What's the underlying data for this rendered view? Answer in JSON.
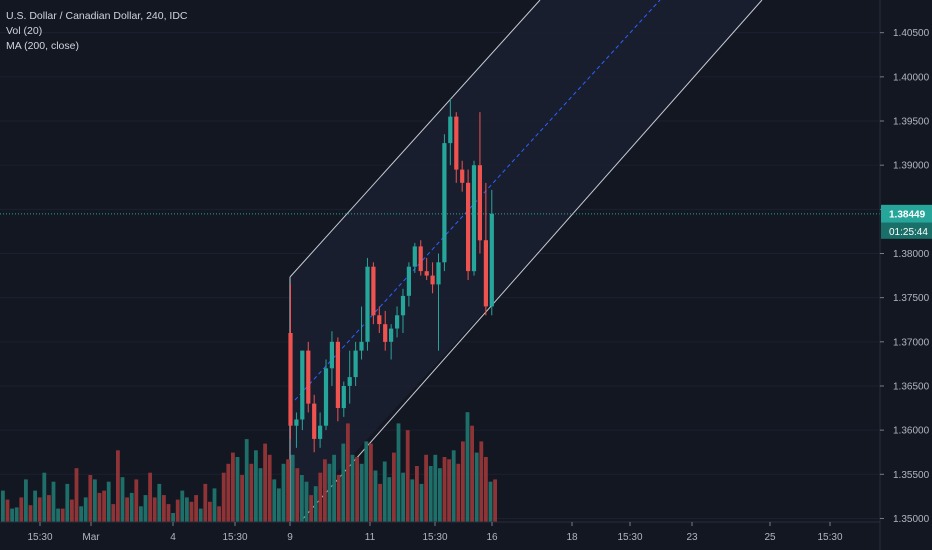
{
  "header": {
    "symbol": "U.S. Dollar / Canadian Dollar, 240, IDC",
    "indicator_vol": "Vol (20)",
    "indicator_ma": "MA (200, close)"
  },
  "colors": {
    "background": "#131722",
    "up": "#26a69a",
    "down": "#ef5350",
    "vol_up": "#1e6f69",
    "vol_down": "#8e3437",
    "channel_line": "#c8ccd6",
    "channel_fill": "#1b1f30",
    "midline": "#2962ff",
    "price_line": "#26a69a",
    "axis_text": "#b2b5be",
    "label_bg": "#26a69a",
    "label_text": "#ffffff"
  },
  "price_label": "1.38449",
  "countdown_label": "01:25:44",
  "chart_data": {
    "type": "candlestick",
    "y_axis_ticks": [
      "1.40500",
      "1.40000",
      "1.39500",
      "1.39000",
      "1.38500",
      "1.38000",
      "1.37500",
      "1.37000",
      "1.36500",
      "1.36000",
      "1.35500",
      "1.35000"
    ],
    "ylim": [
      1.3496,
      1.4087
    ],
    "x_axis_ticks": [
      "15:30",
      "Mar",
      "4",
      "15:30",
      "9",
      "11",
      "15:30",
      "16",
      "18",
      "15:30",
      "23",
      "25",
      "15:30"
    ],
    "last_price": 1.38449,
    "candles": [
      {
        "o": 1.371,
        "h": 1.3765,
        "l": 1.359,
        "c": 1.3605
      },
      {
        "o": 1.3605,
        "h": 1.362,
        "l": 1.358,
        "c": 1.3612
      },
      {
        "o": 1.3612,
        "h": 1.369,
        "c": 1.369,
        "l": 1.36
      },
      {
        "o": 1.369,
        "h": 1.37,
        "l": 1.362,
        "c": 1.363
      },
      {
        "o": 1.363,
        "h": 1.364,
        "l": 1.3575,
        "c": 1.359
      },
      {
        "o": 1.359,
        "h": 1.362,
        "l": 1.358,
        "c": 1.3605
      },
      {
        "o": 1.3605,
        "h": 1.368,
        "l": 1.36,
        "c": 1.367
      },
      {
        "o": 1.367,
        "h": 1.3712,
        "l": 1.365,
        "c": 1.37
      },
      {
        "o": 1.37,
        "h": 1.3705,
        "l": 1.361,
        "c": 1.3625
      },
      {
        "o": 1.3625,
        "h": 1.3655,
        "l": 1.3615,
        "c": 1.365
      },
      {
        "o": 1.365,
        "h": 1.369,
        "l": 1.363,
        "c": 1.366
      },
      {
        "o": 1.366,
        "h": 1.37,
        "l": 1.365,
        "c": 1.369
      },
      {
        "o": 1.369,
        "h": 1.374,
        "l": 1.368,
        "c": 1.37
      },
      {
        "o": 1.37,
        "h": 1.3795,
        "l": 1.369,
        "c": 1.3785
      },
      {
        "o": 1.3785,
        "h": 1.379,
        "l": 1.372,
        "c": 1.373
      },
      {
        "o": 1.373,
        "h": 1.374,
        "l": 1.371,
        "c": 1.372
      },
      {
        "o": 1.372,
        "h": 1.3735,
        "l": 1.369,
        "c": 1.37
      },
      {
        "o": 1.37,
        "h": 1.372,
        "l": 1.368,
        "c": 1.3715
      },
      {
        "o": 1.3715,
        "h": 1.374,
        "l": 1.3705,
        "c": 1.373
      },
      {
        "o": 1.373,
        "h": 1.376,
        "l": 1.371,
        "c": 1.3752
      },
      {
        "o": 1.3752,
        "h": 1.379,
        "l": 1.374,
        "c": 1.3785
      },
      {
        "o": 1.3785,
        "h": 1.3812,
        "l": 1.3778,
        "c": 1.3808
      },
      {
        "o": 1.3808,
        "h": 1.3815,
        "l": 1.3775,
        "c": 1.378
      },
      {
        "o": 1.378,
        "h": 1.3795,
        "l": 1.377,
        "c": 1.3775
      },
      {
        "o": 1.3775,
        "h": 1.379,
        "l": 1.3755,
        "c": 1.3765
      },
      {
        "o": 1.3765,
        "h": 1.38,
        "l": 1.369,
        "c": 1.379
      },
      {
        "o": 1.379,
        "h": 1.3935,
        "l": 1.378,
        "c": 1.3925
      },
      {
        "o": 1.3925,
        "h": 1.3975,
        "l": 1.39,
        "c": 1.3955
      },
      {
        "o": 1.3955,
        "h": 1.396,
        "l": 1.388,
        "c": 1.3895
      },
      {
        "o": 1.3895,
        "h": 1.3905,
        "l": 1.387,
        "c": 1.388
      },
      {
        "o": 1.388,
        "h": 1.3895,
        "l": 1.377,
        "c": 1.378
      },
      {
        "o": 1.378,
        "h": 1.3905,
        "l": 1.3775,
        "c": 1.39
      },
      {
        "o": 1.39,
        "h": 1.396,
        "l": 1.38,
        "c": 1.3815
      },
      {
        "o": 1.3815,
        "h": 1.388,
        "l": 1.373,
        "c": 1.374
      },
      {
        "o": 1.374,
        "h": 1.3872,
        "l": 1.373,
        "c": 1.3845
      }
    ],
    "volume": {
      "values": [
        28,
        20,
        12,
        13,
        22,
        38,
        15,
        28,
        22,
        44,
        24,
        36,
        12,
        12,
        34,
        20,
        48,
        14,
        22,
        42,
        38,
        26,
        28,
        36,
        16,
        64,
        40,
        22,
        26,
        38,
        14,
        24,
        44,
        22,
        34,
        24,
        16,
        8,
        20,
        28,
        22,
        18,
        24,
        12,
        34,
        18,
        30,
        14,
        44,
        52,
        62,
        58,
        42,
        74,
        52,
        64,
        48,
        70,
        60,
        38,
        30,
        52,
        56,
        60,
        48,
        42,
        36,
        24,
        32,
        44,
        56,
        52,
        60,
        42,
        70,
        88,
        60,
        58,
        52,
        72,
        70,
        46,
        34,
        54,
        40,
        62,
        88,
        44,
        82,
        38,
        50,
        34,
        60,
        50,
        60,
        48,
        58,
        56,
        64,
        52,
        72,
        98,
        86,
        62,
        72,
        58,
        36,
        38
      ],
      "up": [
        1,
        0,
        1,
        1,
        0,
        1,
        0,
        1,
        0,
        1,
        0,
        1,
        1,
        0,
        1,
        0,
        0,
        1,
        1,
        0,
        1,
        0,
        0,
        1,
        0,
        0,
        1,
        0,
        1,
        0,
        1,
        1,
        0,
        0,
        1,
        0,
        0,
        1,
        0,
        1,
        1,
        0,
        0,
        1,
        0,
        0,
        1,
        0,
        0,
        0,
        0,
        1,
        0,
        1,
        0,
        1,
        1,
        0,
        0,
        1,
        1,
        1,
        0,
        1,
        0,
        1,
        1,
        0,
        1,
        0,
        0,
        1,
        1,
        0,
        1,
        0,
        1,
        0,
        1,
        1,
        0,
        1,
        0,
        1,
        1,
        0,
        1,
        1,
        0,
        1,
        0,
        1,
        0,
        1,
        1,
        1,
        0,
        0,
        1,
        0,
        0,
        1,
        0,
        1,
        0,
        0,
        1,
        0
      ]
    }
  }
}
